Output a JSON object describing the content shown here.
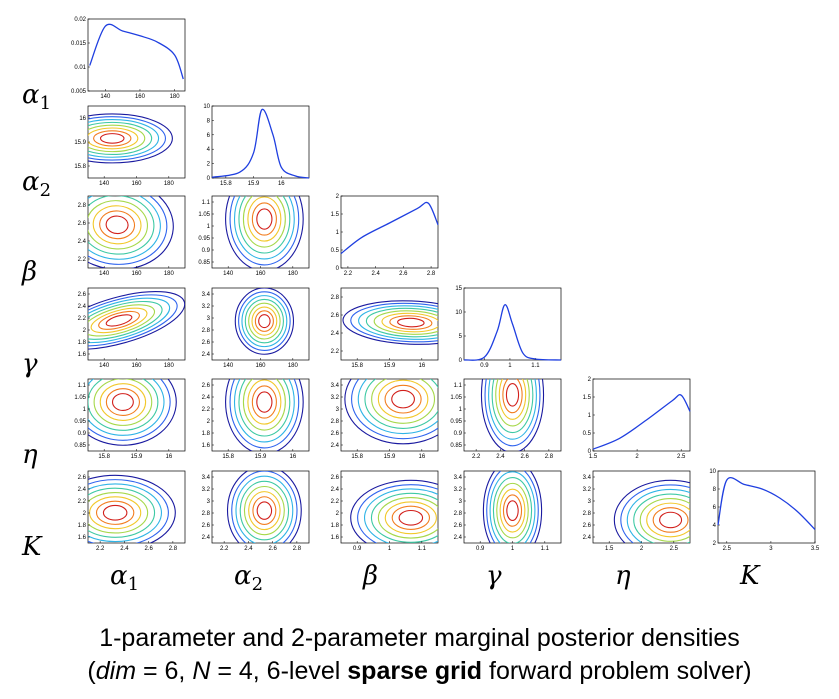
{
  "figure": {
    "row_labels": [
      "α1",
      "α2",
      "β",
      "γ",
      "η",
      "K"
    ],
    "col_labels": [
      "α1",
      "α2",
      "β",
      "γ",
      "η",
      "K"
    ],
    "line_color": "#1f3fe0",
    "contour_colors": [
      "#1a1aa0",
      "#2f64ee",
      "#2fb4e6",
      "#3ec9a4",
      "#a6d84a",
      "#f2c82b",
      "#f27d1f",
      "#d2201b",
      "#8a0b0b"
    ]
  },
  "caption": {
    "line1": "1-parameter and 2-parameter marginal posterior densities",
    "dim_label": "dim",
    "dim_value": " = 6, ",
    "n_label": "N",
    "n_value": " = 4, 6-level ",
    "bold_text": "sparse grid",
    "tail": " forward problem solver)",
    "open_paren": "("
  },
  "chart_data": [
    {
      "type": "line",
      "panel": "α1 marginal",
      "x": [
        131,
        140,
        150,
        160,
        170,
        180,
        185
      ],
      "y": [
        0.0103,
        0.0185,
        0.0175,
        0.0165,
        0.0152,
        0.0125,
        0.0075
      ],
      "xticks": [
        "140",
        "160",
        "180"
      ],
      "yticks": [
        "0.005",
        "0.01",
        "0.015",
        "0.02"
      ],
      "xlim": [
        130,
        186
      ],
      "ylim": [
        0.005,
        0.02
      ]
    },
    {
      "type": "line",
      "panel": "α2 marginal",
      "x": [
        15.75,
        15.85,
        15.9,
        15.93,
        15.97,
        16.0,
        16.05,
        16.1
      ],
      "y": [
        0.1,
        0.8,
        3.5,
        9.5,
        6.0,
        1.5,
        0.3,
        0.0
      ],
      "xticks": [
        "15.8",
        "15.9",
        "16"
      ],
      "yticks": [
        "0",
        "2",
        "4",
        "6",
        "8",
        "10"
      ],
      "xlim": [
        15.75,
        16.1
      ],
      "ylim": [
        0,
        10
      ]
    },
    {
      "type": "line",
      "panel": "β marginal",
      "x": [
        2.15,
        2.3,
        2.5,
        2.7,
        2.78,
        2.85
      ],
      "y": [
        0.4,
        0.85,
        1.25,
        1.65,
        1.8,
        1.2
      ],
      "xticks": [
        "2.2",
        "2.4",
        "2.6",
        "2.8"
      ],
      "yticks": [
        "0",
        "0.5",
        "1",
        "1.5",
        "2"
      ],
      "xlim": [
        2.15,
        2.85
      ],
      "ylim": [
        0,
        2
      ]
    },
    {
      "type": "line",
      "panel": "γ marginal",
      "x": [
        0.82,
        0.9,
        0.95,
        0.98,
        1.01,
        1.05,
        1.1,
        1.2
      ],
      "y": [
        0.0,
        0.6,
        6.0,
        11.5,
        7.5,
        1.5,
        0.2,
        0.0
      ],
      "xticks": [
        "0.9",
        "1",
        "1.1"
      ],
      "yticks": [
        "0",
        "5",
        "10",
        "15"
      ],
      "xlim": [
        0.82,
        1.2
      ],
      "ylim": [
        0,
        15
      ]
    },
    {
      "type": "line",
      "panel": "η marginal",
      "x": [
        1.5,
        1.8,
        2.1,
        2.4,
        2.5,
        2.6
      ],
      "y": [
        0.05,
        0.35,
        0.85,
        1.4,
        1.55,
        1.1
      ],
      "xticks": [
        "1.5",
        "2",
        "2.5"
      ],
      "yticks": [
        "0",
        "0.5",
        "1",
        "1.5",
        "2"
      ],
      "xlim": [
        1.5,
        2.6
      ],
      "ylim": [
        0,
        2
      ]
    },
    {
      "type": "line",
      "panel": "K marginal",
      "x": [
        2.4,
        2.5,
        2.7,
        2.9,
        3.1,
        3.3,
        3.5
      ],
      "y": [
        4.0,
        9.0,
        8.5,
        8.0,
        7.0,
        5.5,
        3.5
      ],
      "xticks": [
        "2.5",
        "3",
        "3.5"
      ],
      "yticks": [
        "2",
        "4",
        "6",
        "8",
        "10"
      ],
      "xlim": [
        2.4,
        3.5
      ],
      "ylim": [
        2,
        10
      ]
    },
    {
      "type": "heatmap",
      "panel": "α2 vs α1",
      "xticks": [
        "140",
        "160",
        "180"
      ],
      "yticks": [
        "15.8",
        "15.9",
        "16"
      ]
    },
    {
      "type": "heatmap",
      "panel": "β vs α1",
      "xticks": [
        "140",
        "160",
        "180"
      ],
      "yticks": [
        "2.2",
        "2.4",
        "2.6",
        "2.8"
      ]
    },
    {
      "type": "heatmap",
      "panel": "γ vs α1",
      "xticks": [
        "140",
        "160",
        "180"
      ],
      "yticks": [
        "0.85",
        "0.9",
        "0.95",
        "1",
        "1.05",
        "1.1"
      ]
    },
    {
      "type": "heatmap",
      "panel": "η vs α1",
      "xticks": [
        "140",
        "160",
        "180"
      ],
      "yticks": [
        "1.6",
        "1.8",
        "2",
        "2.2",
        "2.4",
        "2.6"
      ]
    },
    {
      "type": "heatmap",
      "panel": "K vs α1",
      "xticks": [
        "140",
        "160",
        "180"
      ],
      "yticks": [
        "2.4",
        "2.6",
        "2.8",
        "3",
        "3.2",
        "3.4"
      ]
    },
    {
      "type": "heatmap",
      "panel": "β vs α2",
      "xticks": [
        "15.8",
        "15.9",
        "16"
      ],
      "yticks": [
        "2.2",
        "2.4",
        "2.6",
        "2.8"
      ]
    },
    {
      "type": "heatmap",
      "panel": "γ vs α2",
      "xticks": [
        "15.8",
        "15.9",
        "16"
      ],
      "yticks": [
        "0.85",
        "0.9",
        "0.95",
        "1",
        "1.05",
        "1.1"
      ]
    },
    {
      "type": "heatmap",
      "panel": "η vs α2",
      "xticks": [
        "15.8",
        "15.9",
        "16"
      ],
      "yticks": [
        "1.6",
        "1.8",
        "2",
        "2.2",
        "2.4",
        "2.6"
      ]
    },
    {
      "type": "heatmap",
      "panel": "K vs α2",
      "xticks": [
        "15.8",
        "15.9",
        "16"
      ],
      "yticks": [
        "2.4",
        "2.6",
        "2.8",
        "3",
        "3.2",
        "3.4"
      ]
    },
    {
      "type": "heatmap",
      "panel": "γ vs β",
      "xticks": [
        "2.2",
        "2.4",
        "2.6",
        "2.8"
      ],
      "yticks": [
        "0.85",
        "0.9",
        "0.95",
        "1",
        "1.05",
        "1.1"
      ]
    },
    {
      "type": "heatmap",
      "panel": "η vs β",
      "xticks": [
        "2.2",
        "2.4",
        "2.6",
        "2.8"
      ],
      "yticks": [
        "1.6",
        "1.8",
        "2",
        "2.2",
        "2.4",
        "2.6"
      ]
    },
    {
      "type": "heatmap",
      "panel": "K vs β",
      "xticks": [
        "2.2",
        "2.4",
        "2.6",
        "2.8"
      ],
      "yticks": [
        "2.4",
        "2.6",
        "2.8",
        "3",
        "3.2",
        "3.4"
      ]
    },
    {
      "type": "heatmap",
      "panel": "η vs γ",
      "xticks": [
        "0.9",
        "1",
        "1.1"
      ],
      "yticks": [
        "1.6",
        "1.8",
        "2",
        "2.2",
        "2.4",
        "2.6"
      ]
    },
    {
      "type": "heatmap",
      "panel": "K vs γ",
      "xticks": [
        "0.9",
        "1",
        "1.1"
      ],
      "yticks": [
        "2.4",
        "2.6",
        "2.8",
        "3",
        "3.2",
        "3.4"
      ]
    },
    {
      "type": "heatmap",
      "panel": "K vs η",
      "xticks": [
        "1.5",
        "2",
        "2.5"
      ],
      "yticks": [
        "2.4",
        "2.6",
        "2.8",
        "3",
        "3.2",
        "3.4"
      ]
    }
  ]
}
